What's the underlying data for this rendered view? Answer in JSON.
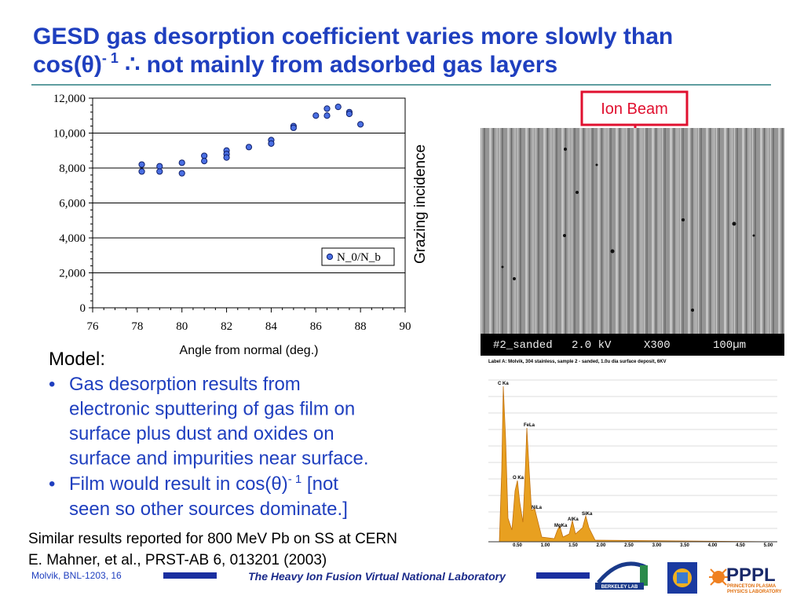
{
  "slide": {
    "title_line1": "GESD gas desorption coefficient varies more slowly than",
    "title_line2_a": "cos(θ)",
    "title_line2_sup": "- 1",
    "title_line2_b": " ∴ not mainly from adsorbed gas layers",
    "grazing_label": "Grazing incidence",
    "ion_beam_label": "Ion Beam",
    "sem_bar": [
      "#2_sanded",
      "2.0 kV",
      "X300",
      "100µm"
    ],
    "sem_caption": "Label A: Molvik, 304 stainless, sample 2 - sanded, 1.0u dia surface deposit, 6KV",
    "spectrum_peak_labels": [
      "C Ka",
      "FeLa",
      "O Ka",
      "NiLa",
      "MgKa",
      "AlKa",
      "SiKa"
    ],
    "spectrum_ticks": [
      "0.50",
      "1.00",
      "1.50",
      "2.00",
      "2.50",
      "3.00",
      "3.50",
      "4.00",
      "4.50",
      "5.00"
    ],
    "model_heading": "Model:",
    "bullet1_lines": [
      "Gas desorption results from",
      "electronic sputtering of gas film on",
      "surface plus dust and oxides on",
      "surface and impurities near surface."
    ],
    "bullet2_line1_a": "Film would result in cos(θ)",
    "bullet2_line1_sup": "- 1",
    "bullet2_line1_b": " [not",
    "bullet2_line2": "seen so other sources dominate.]",
    "note_line1": "Similar results reported for 800 MeV Pb on SS at CERN",
    "note_line2": "E. Mahner, et al., PRST-AB 6, 013201 (2003)",
    "footer_left": "Molvik,  BNL-1203, 16",
    "footer_center": "The Heavy Ion Fusion Virtual National Laboratory",
    "logo_berkeley": "BERKELEY LAB",
    "logo_pppl": "PPPL",
    "logo_pppl_sub1": "PRINCETON PLASMA",
    "logo_pppl_sub2": "PHYSICS LABORATORY"
  },
  "chart_data": {
    "type": "scatter",
    "x_label": "Angle from normal (deg.)",
    "x": [
      78.2,
      78.2,
      79,
      79,
      80,
      80,
      81,
      81,
      82,
      82,
      82,
      83,
      84,
      84,
      85,
      85,
      86,
      86.5,
      86.5,
      87,
      87.5,
      87.5,
      88
    ],
    "series": [
      {
        "name": "N_0/N_b",
        "color": "#4a6fe3",
        "values": [
          8200,
          7800,
          8100,
          7800,
          8300,
          7700,
          8700,
          8400,
          9000,
          8800,
          8600,
          9200,
          9600,
          9400,
          10400,
          10300,
          11000,
          11400,
          11000,
          11500,
          11200,
          11100,
          10500
        ]
      }
    ],
    "xlim": [
      76,
      90
    ],
    "xticks": [
      76,
      78,
      80,
      82,
      84,
      86,
      88,
      90
    ],
    "ylim": [
      0,
      12000
    ],
    "yticks": [
      0,
      {
        "value": 2000,
        "label": "2,000"
      },
      {
        "value": 4000,
        "label": "4,000"
      },
      {
        "value": 6000,
        "label": "6,000"
      },
      {
        "value": 8000,
        "label": "8,000"
      },
      {
        "value": 10000,
        "label": "10,000"
      },
      {
        "value": 12000,
        "label": "12,000"
      }
    ],
    "grid": true
  }
}
